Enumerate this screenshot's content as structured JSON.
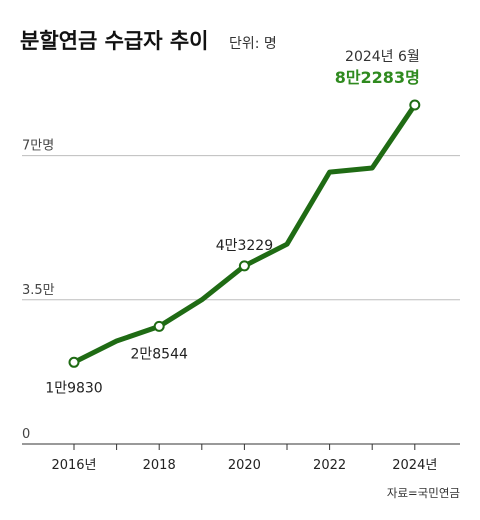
{
  "header": {
    "title": "분할연금 수급자 추이",
    "unit": "단위: 명"
  },
  "source": "자료=국민연금",
  "colors": {
    "line": "#1f6b14",
    "highlight": "#2f8a1f",
    "grid": "#bdbdbd",
    "axis": "#333333"
  },
  "chart_data": {
    "type": "line",
    "title": "분할연금 수급자 추이",
    "unit": "단위: 명",
    "x": [
      "2016",
      "2017",
      "2018",
      "2019",
      "2020",
      "2021",
      "2022",
      "2023",
      "2024-06"
    ],
    "values": [
      19830,
      25000,
      28544,
      35000,
      43229,
      48500,
      66000,
      67000,
      82283
    ],
    "xticks": [
      "2016년",
      "2018",
      "2020",
      "2022",
      "2024년"
    ],
    "yticks": [
      {
        "value": 0,
        "label": "0"
      },
      {
        "value": 35000,
        "label": "3.5만"
      },
      {
        "value": 70000,
        "label": "7만명"
      }
    ],
    "ylim": [
      0,
      82283
    ],
    "grid": true,
    "markers": [
      0,
      2,
      4,
      8
    ],
    "data_labels": [
      {
        "index": 0,
        "text": "1만9830"
      },
      {
        "index": 2,
        "text": "2만8544"
      },
      {
        "index": 4,
        "text": "4만3229"
      }
    ],
    "callout": {
      "index": 8,
      "date": "2024년 6월",
      "value": "8만2283명"
    }
  }
}
